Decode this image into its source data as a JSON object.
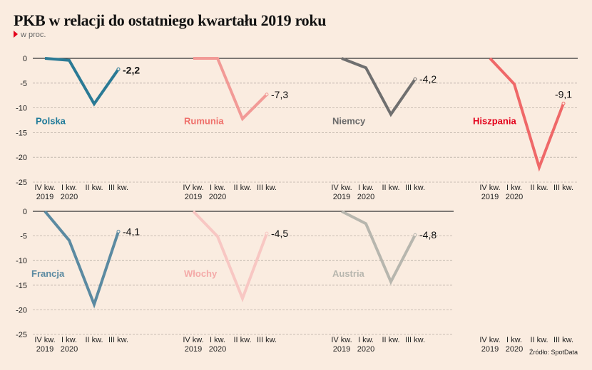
{
  "title": "PKB w relacji do ostatniego kwartału 2019 roku",
  "subtitle": "w proc.",
  "source": "Źródło: SpotData",
  "chart_data": {
    "type": "line",
    "title": "PKB w relacji do ostatniego kwartału 2019 roku",
    "subtitle": "w proc.",
    "ylim": [
      -25,
      0
    ],
    "yticks": [
      0,
      -5,
      -10,
      -15,
      -20,
      -25
    ],
    "ytick_labels": [
      "0",
      "-5",
      "-10",
      "-15",
      "-20",
      "-25"
    ],
    "categories": [
      {
        "line1": "IV kw.",
        "line2": "2019"
      },
      {
        "line1": "I kw.",
        "line2": "2020"
      },
      {
        "line1": "II kw.",
        "line2": ""
      },
      {
        "line1": "III kw.",
        "line2": ""
      }
    ],
    "grid": true,
    "series": [
      {
        "name": "Polska",
        "values": [
          0,
          -0.4,
          -9.2,
          -2.2
        ],
        "last_label": "-2,2",
        "color": "#2a7a95",
        "label_color": "#1f7a99",
        "bold_label": true
      },
      {
        "name": "Rumunia",
        "values": [
          0,
          0,
          -12.2,
          -7.3
        ],
        "last_label": "-7,3",
        "color": "#f29a96",
        "label_color": "#ef6f6a",
        "bold_label": false
      },
      {
        "name": "Niemcy",
        "values": [
          0,
          -1.9,
          -11.3,
          -4.2
        ],
        "last_label": "-4,2",
        "color": "#6f6f6f",
        "label_color": "#6a6a6a",
        "bold_label": false
      },
      {
        "name": "Hiszpania",
        "values": [
          0,
          -5.2,
          -22.0,
          -9.1
        ],
        "last_label": "-9,1",
        "color": "#ef6868",
        "label_color": "#e3001b",
        "bold_label": false
      },
      {
        "name": "Francja",
        "values": [
          0,
          -5.9,
          -18.9,
          -4.1
        ],
        "last_label": "-4,1",
        "color": "#5b8aa1",
        "label_color": "#5b8aa1",
        "bold_label": false
      },
      {
        "name": "Włochy",
        "values": [
          0,
          -5.1,
          -17.7,
          -4.5
        ],
        "last_label": "-4,5",
        "color": "#f8c7c3",
        "label_color": "#f4aaa8",
        "bold_label": false
      },
      {
        "name": "Austria",
        "values": [
          0,
          -2.5,
          -14.3,
          -4.8
        ],
        "last_label": "-4,8",
        "color": "#b7b6ae",
        "label_color": "#b7b6ae",
        "bold_label": false
      }
    ]
  }
}
